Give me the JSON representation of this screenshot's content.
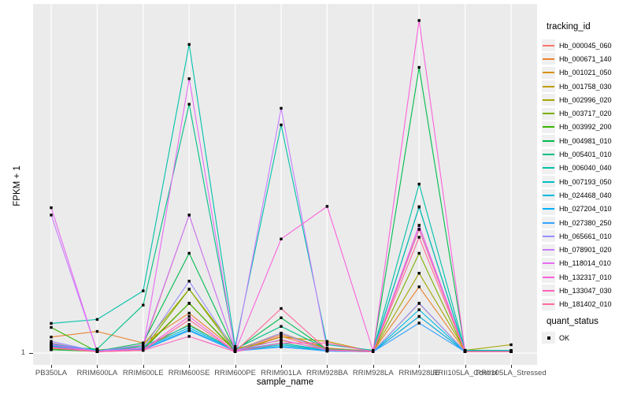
{
  "figure": {
    "background": "#FFFFFF",
    "panel_background": "#EBEBEB",
    "gridline_color": "#FFFFFF",
    "axis_text_color": "#4D4D4D",
    "point_color": "#000000"
  },
  "axes": {
    "x_title": "sample_name",
    "y_title": "FPKM + 1",
    "y_tick_labels": [
      "1"
    ]
  },
  "legend": {
    "tracking_title": "tracking_id",
    "quant_title": "quant_status",
    "quant_items": [
      {
        "label": "OK",
        "marker": "black-square"
      }
    ]
  },
  "chart_data": {
    "type": "line",
    "title": "",
    "xlabel": "sample_name",
    "ylabel": "FPKM + 1",
    "legend_position": "right",
    "grid": "white major gridlines: vertical at each sample, horizontal at y tick 1",
    "x_categories": [
      "PB350LA",
      "RRIM600LA",
      "RRIM600LE",
      "RRIM600SE",
      "RRIM600PE",
      "RRIM901LA",
      "RRIM928BA",
      "RRIM928LA",
      "RRIM928LE",
      "RRII105LA_Control",
      "RRII105LA_Stressed"
    ],
    "y_axis_note": "Only the tick '1' (baseline) is labeled on the y axis; series values are estimated fractions of panel height above the FPKM+1 = 1 baseline (1.0 = tallest peak, Hb_132317_010 at RRIM928LE)",
    "y_ticks": [
      "1"
    ],
    "point_marker": "small black square (quant_status = OK) at every data point",
    "series": [
      {
        "name": "Hb_000045_060",
        "color": "#F8766D",
        "values": [
          0.03,
          0.005,
          0.02,
          0.415,
          0.008,
          0.05,
          0.01,
          0.005,
          0.439,
          0.004,
          0.004
        ]
      },
      {
        "name": "Hb_000671_140",
        "color": "#EA8331",
        "values": [
          0.048,
          0.065,
          0.03,
          0.12,
          0.01,
          0.055,
          0.015,
          0.006,
          0.199,
          0.006,
          0.006
        ]
      },
      {
        "name": "Hb_001021_050",
        "color": "#D89000",
        "values": [
          0.02,
          0.01,
          0.015,
          0.149,
          0.008,
          0.06,
          0.012,
          0.005,
          0.149,
          0.005,
          0.005
        ]
      },
      {
        "name": "Hb_001758_030",
        "color": "#C09B00",
        "values": [
          0.015,
          0.008,
          0.012,
          0.086,
          0.006,
          0.048,
          0.035,
          0.004,
          0.11,
          0.004,
          0.004
        ]
      },
      {
        "name": "Hb_002996_020",
        "color": "#A3A500",
        "values": [
          0.012,
          0.006,
          0.024,
          0.192,
          0.014,
          0.038,
          0.01,
          0.006,
          0.24,
          0.008,
          0.025
        ]
      },
      {
        "name": "Hb_003717_020",
        "color": "#7CAE00",
        "values": [
          0.01,
          0.005,
          0.01,
          0.192,
          0.005,
          0.03,
          0.008,
          0.004,
          0.3,
          0.004,
          0.004
        ]
      },
      {
        "name": "Hb_003992_200",
        "color": "#39B600",
        "values": [
          0.077,
          0.004,
          0.01,
          0.15,
          0.006,
          0.025,
          0.006,
          0.004,
          0.372,
          0.004,
          0.004
        ]
      },
      {
        "name": "Hb_004981_010",
        "color": "#00BB4E",
        "values": [
          0.01,
          0.006,
          0.03,
          0.3,
          0.008,
          0.106,
          0.01,
          0.005,
          0.859,
          0.005,
          0.005
        ]
      },
      {
        "name": "Hb_005401_010",
        "color": "#00C087",
        "values": [
          0.02,
          0.012,
          0.144,
          0.748,
          0.012,
          0.08,
          0.012,
          0.006,
          0.439,
          0.006,
          0.006
        ]
      },
      {
        "name": "Hb_006040_040",
        "color": "#00C1A9",
        "values": [
          0.089,
          0.101,
          0.187,
          0.928,
          0.02,
          0.686,
          0.025,
          0.008,
          0.508,
          0.008,
          0.008
        ]
      },
      {
        "name": "Hb_007193_050",
        "color": "#00BFC4",
        "values": [
          0.025,
          0.008,
          0.02,
          0.083,
          0.008,
          0.03,
          0.008,
          0.005,
          0.44,
          0.005,
          0.005
        ]
      },
      {
        "name": "Hb_024468_040",
        "color": "#00BAE0",
        "values": [
          0.022,
          0.007,
          0.015,
          0.076,
          0.007,
          0.025,
          0.007,
          0.004,
          0.13,
          0.004,
          0.004
        ]
      },
      {
        "name": "Hb_027204_010",
        "color": "#00B0F6",
        "values": [
          0.02,
          0.006,
          0.012,
          0.07,
          0.006,
          0.02,
          0.006,
          0.004,
          0.11,
          0.004,
          0.004
        ]
      },
      {
        "name": "Hb_027380_250",
        "color": "#35A2FF",
        "values": [
          0.028,
          0.006,
          0.01,
          0.067,
          0.006,
          0.018,
          0.006,
          0.004,
          0.09,
          0.004,
          0.004
        ]
      },
      {
        "name": "Hb_065661_010",
        "color": "#9590FF",
        "values": [
          0.035,
          0.005,
          0.015,
          0.216,
          0.006,
          0.06,
          0.008,
          0.004,
          0.15,
          0.004,
          0.004
        ]
      },
      {
        "name": "Hb_078901_020",
        "color": "#C77CFF",
        "values": [
          0.415,
          0.005,
          0.025,
          0.415,
          0.008,
          0.736,
          0.01,
          0.005,
          0.384,
          0.005,
          0.005
        ]
      },
      {
        "name": "Hb_118014_010",
        "color": "#E76BF3",
        "values": [
          0.437,
          0.004,
          0.015,
          0.825,
          0.006,
          0.04,
          0.008,
          0.004,
          0.384,
          0.004,
          0.004
        ]
      },
      {
        "name": "Hb_132317_010",
        "color": "#FA62DB",
        "values": [
          0.025,
          0.004,
          0.01,
          0.11,
          0.005,
          0.343,
          0.441,
          0.006,
          1.0,
          0.004,
          0.004
        ]
      },
      {
        "name": "Hb_133047_030",
        "color": "#FF62BC",
        "values": [
          0.018,
          0.004,
          0.008,
          0.05,
          0.004,
          0.03,
          0.03,
          0.004,
          0.372,
          0.004,
          0.004
        ]
      },
      {
        "name": "Hb_181402_010",
        "color": "#FF6A98",
        "values": [
          0.015,
          0.004,
          0.008,
          0.1,
          0.004,
          0.134,
          0.01,
          0.004,
          0.348,
          0.004,
          0.004
        ]
      }
    ]
  }
}
